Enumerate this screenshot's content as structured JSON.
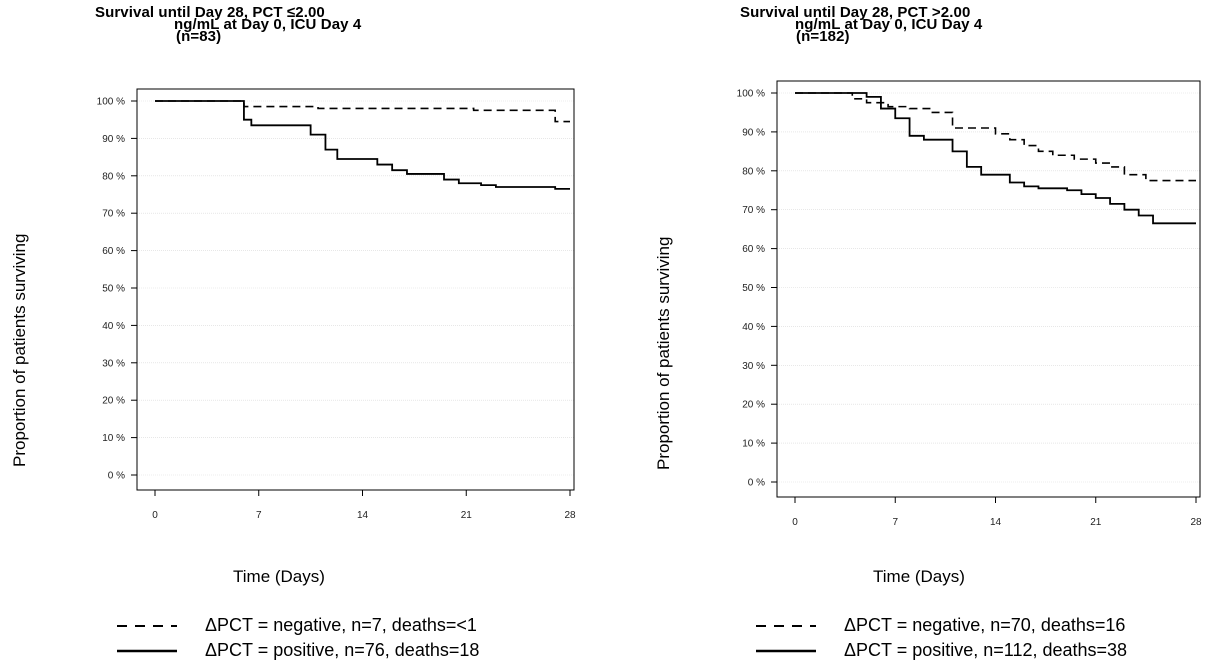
{
  "chart_data": [
    {
      "type": "line",
      "title_lines": [
        "Survival until Day 28, PCT ≤2.00",
        "ng/mL at Day 0, ICU Day 4",
        "(n=83)"
      ],
      "xlabel": "Time (Days)",
      "ylabel": "Proportion of patients surviving",
      "xlim": [
        0,
        28
      ],
      "ylim": [
        0,
        100
      ],
      "x_ticks": [
        0,
        7,
        14,
        21,
        28
      ],
      "y_ticks": [
        0,
        10,
        20,
        30,
        40,
        50,
        60,
        70,
        80,
        90,
        100
      ],
      "y_tick_labels": [
        "0 %",
        "10 %",
        "20 %",
        "30 %",
        "40 %",
        "50 %",
        "60 %",
        "70 %",
        "80 %",
        "90 %",
        "100 %"
      ],
      "grid": true,
      "series": [
        {
          "name": "ΔPCT = negative, n=7, deaths=<1",
          "style": "dashed",
          "x": [
            0,
            6,
            11,
            21.5,
            27,
            28
          ],
          "y": [
            100,
            98.5,
            98,
            97.5,
            94.5,
            94.5
          ]
        },
        {
          "name": "ΔPCT = positive, n=76, deaths=18",
          "style": "solid",
          "x": [
            0,
            6,
            6.5,
            10.5,
            11.5,
            12.3,
            13,
            15,
            16,
            17,
            18,
            19.5,
            20.5,
            22,
            23,
            27,
            28
          ],
          "y": [
            100,
            95,
            93.5,
            91,
            87,
            84.5,
            84.5,
            83,
            81.5,
            80.5,
            80.5,
            79,
            78,
            77.5,
            77,
            76.5,
            76.5
          ]
        }
      ]
    },
    {
      "type": "line",
      "title_lines": [
        "Survival until Day 28, PCT >2.00",
        "ng/mL at Day 0, ICU Day 4",
        "(n=182)"
      ],
      "xlabel": "Time (Days)",
      "ylabel": "Proportion of patients surviving",
      "xlim": [
        0,
        28
      ],
      "ylim": [
        0,
        100
      ],
      "x_ticks": [
        0,
        7,
        14,
        21,
        28
      ],
      "y_ticks": [
        0,
        10,
        20,
        30,
        40,
        50,
        60,
        70,
        80,
        90,
        100
      ],
      "y_tick_labels": [
        "0 %",
        "10 %",
        "20 %",
        "30 %",
        "40 %",
        "50 %",
        "60 %",
        "70 %",
        "80 %",
        "90 %",
        "100 %"
      ],
      "grid": true,
      "series": [
        {
          "name": "ΔPCT = negative, n=70, deaths=16",
          "style": "dashed",
          "x": [
            0,
            4,
            5,
            6.5,
            8,
            9.5,
            11,
            12.5,
            14,
            15,
            16,
            17,
            18,
            19.5,
            21,
            22,
            23,
            24.5,
            28
          ],
          "y": [
            100,
            98.5,
            97.5,
            96.5,
            96,
            95,
            91,
            91,
            89.5,
            88,
            86.5,
            85,
            84,
            83,
            82,
            81,
            79,
            77.5,
            77.5
          ]
        },
        {
          "name": "ΔPCT = positive, n=112, deaths=38",
          "style": "solid",
          "x": [
            0,
            5,
            6,
            7,
            8,
            9,
            11,
            12,
            13,
            15,
            16,
            17,
            19,
            20,
            21,
            22,
            23,
            24,
            25,
            28
          ],
          "y": [
            100,
            99,
            96,
            93.5,
            89,
            88,
            85,
            81,
            79,
            77,
            76,
            75.5,
            75,
            74,
            73,
            71.5,
            70,
            68.5,
            66.5,
            66.5
          ]
        }
      ]
    }
  ]
}
